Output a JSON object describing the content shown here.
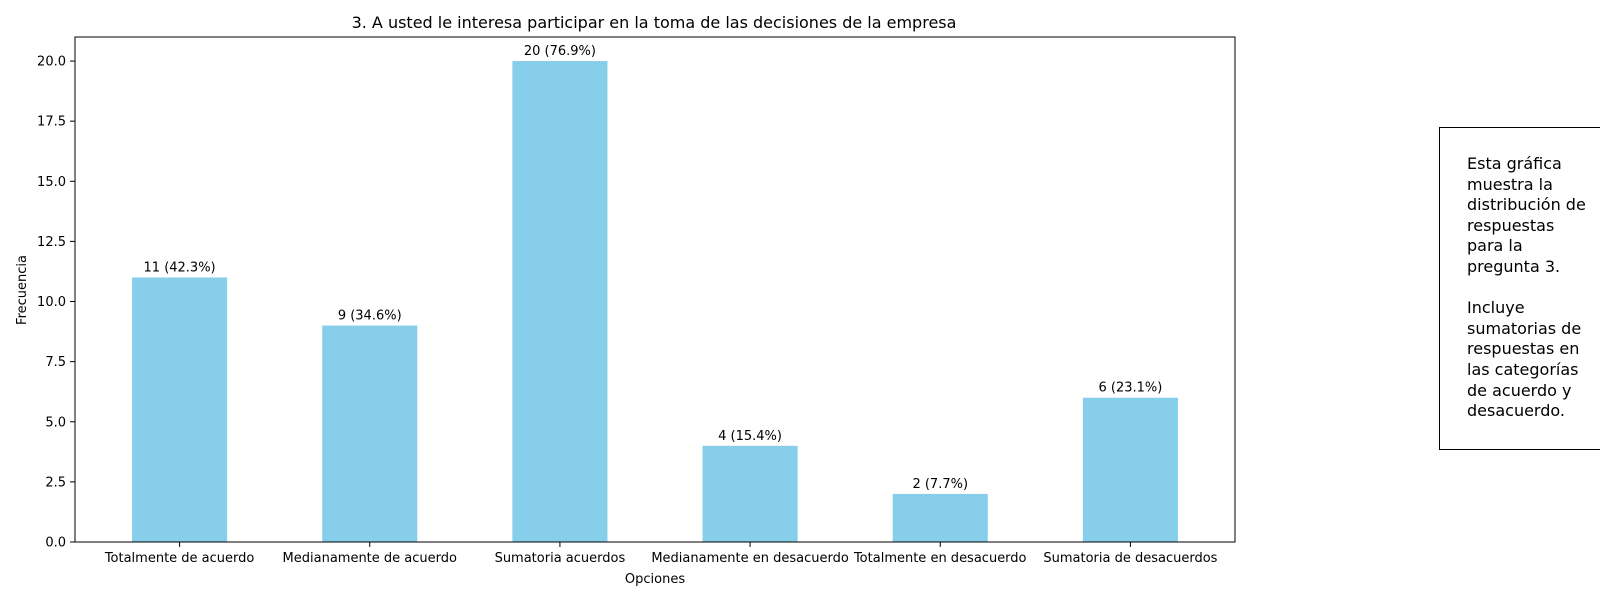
{
  "chart_data": {
    "type": "bar",
    "title": "3. A usted le interesa participar en la toma de las decisiones de la empresa",
    "xlabel": "Opciones",
    "ylabel": "Frecuencia",
    "categories": [
      "Totalmente de acuerdo",
      "Medianamente de acuerdo",
      "Sumatoria acuerdos",
      "Medianamente en desacuerdo",
      "Totalmente en desacuerdo",
      "Sumatoria de desacuerdos"
    ],
    "values": [
      11,
      9,
      20,
      4,
      2,
      6
    ],
    "data_labels": [
      "11 (42.3%)",
      "9 (34.6%)",
      "20 (76.9%)",
      "4 (15.4%)",
      "2 (7.7%)",
      "6 (23.1%)"
    ],
    "ylim": [
      0,
      21
    ],
    "yticks": [
      0.0,
      2.5,
      5.0,
      7.5,
      10.0,
      12.5,
      15.0,
      17.5,
      20.0
    ],
    "ytick_labels": [
      "0.0",
      "2.5",
      "5.0",
      "7.5",
      "10.0",
      "12.5",
      "15.0",
      "17.5",
      "20.0"
    ],
    "bar_color": "#87ceeb",
    "grid": false,
    "legend": "none"
  },
  "note": {
    "text": "Esta gráfica\nmuestra la\ndistribución de\nrespuestas\npara la\npregunta 3.\n\nIncluye\nsumatorias de\nrespuestas en\nlas categorías\nde acuerdo y\ndesacuerdo."
  }
}
